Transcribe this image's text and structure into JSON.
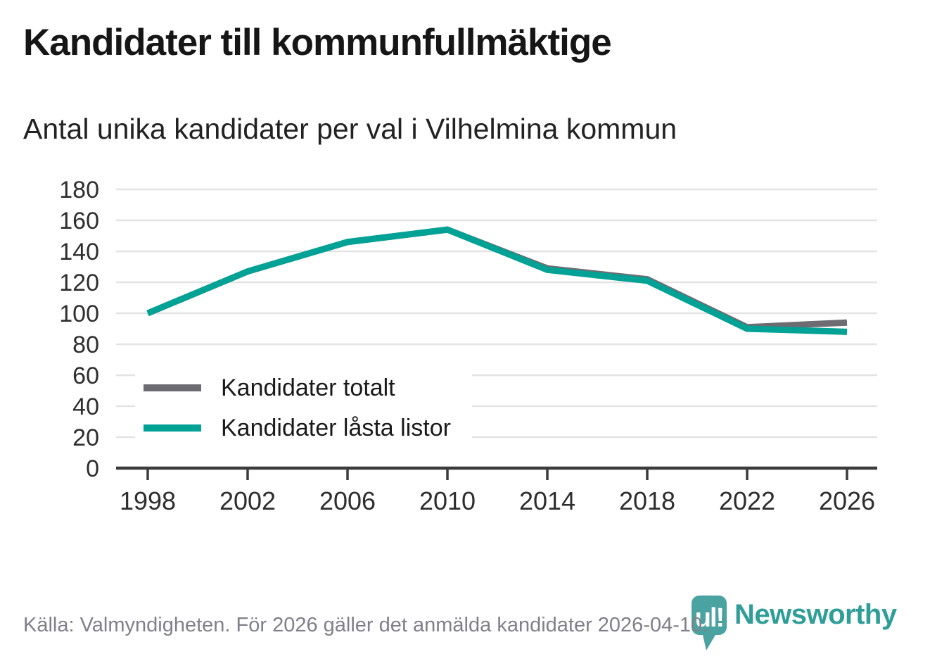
{
  "header": {
    "title": "Kandidater till kommunfullmäktige",
    "subtitle": "Antal unika kandidater per val i Vilhelmina kommun"
  },
  "chart_data": {
    "type": "line",
    "x": [
      1998,
      2002,
      2006,
      2010,
      2014,
      2018,
      2022,
      2026
    ],
    "series": [
      {
        "name": "Kandidater totalt",
        "color": "#6c6c72",
        "values": [
          100,
          127,
          146,
          154,
          129,
          122,
          91,
          94
        ]
      },
      {
        "name": "Kandidater låsta listor",
        "color": "#00a296",
        "values": [
          100,
          127,
          146,
          154,
          128,
          121,
          90,
          88
        ]
      }
    ],
    "ylim": [
      0,
      180
    ],
    "ytick_step": 20,
    "xlabel": "",
    "ylabel": "",
    "grid": "horizontal",
    "legend_position": "inside-bottom-left"
  },
  "footer": {
    "source": "Källa: Valmyndigheten. För 2026 gäller det anmälda kandidater 2026-04-10."
  },
  "logo": {
    "brand": "Newsworthy",
    "icon_glyph": "ul!",
    "icon_color": "#4aa3a0",
    "text_color": "#2f9e99"
  },
  "colors": {
    "grid": "#e3e3e3",
    "axis": "#3b3b3b",
    "tick_text": "#2e2e2e"
  }
}
